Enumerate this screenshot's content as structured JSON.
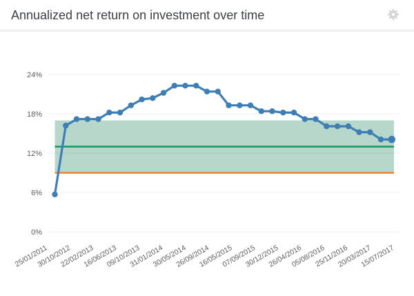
{
  "header": {
    "title": "Annualized net return on investment over time",
    "action_icon": "gear"
  },
  "chart_data": {
    "type": "line",
    "title": "Annualized net return on investment over time",
    "xlabel": "",
    "ylabel": "",
    "y_unit": "%",
    "ylim": [
      0,
      24
    ],
    "y_ticks": [
      0,
      6,
      12,
      18,
      24
    ],
    "grid": true,
    "grid_color": "#ececec",
    "axis_label_color": "#5c5c5c",
    "legend_position": "none",
    "x_tick_labels": [
      "25/01/2011",
      "30/10/2012",
      "22/02/2013",
      "16/06/2013",
      "09/10/2013",
      "31/01/2014",
      "30/05/2014",
      "26/09/2014",
      "16/05/2015",
      "07/09/2015",
      "30/12/2015",
      "26/04/2016",
      "05/08/2016",
      "25/11/2016",
      "20/03/2017",
      "15/07/2017"
    ],
    "x_tick_every": 2,
    "series": [
      {
        "name": "Annualized net return",
        "color": "#3d7eb7",
        "values": [
          5.7,
          16.2,
          17.2,
          17.2,
          17.2,
          18.2,
          18.2,
          19.3,
          20.2,
          20.4,
          21.2,
          22.3,
          22.3,
          22.3,
          21.4,
          21.4,
          19.3,
          19.3,
          19.3,
          18.4,
          18.4,
          18.2,
          18.2,
          17.2,
          17.2,
          16.1,
          16.1,
          16.1,
          15.2,
          15.2,
          14.1,
          14.1
        ]
      }
    ],
    "band": {
      "name": "expected-return-range",
      "low": 9,
      "high": 17,
      "color": "#0e7a4e",
      "opacity": 0.3
    },
    "reference_lines": [
      {
        "name": "reference-line-green",
        "value": 13,
        "color": "#0f9a5f"
      },
      {
        "name": "reference-line-orange",
        "value": 9,
        "color": "#ee8430"
      }
    ]
  }
}
